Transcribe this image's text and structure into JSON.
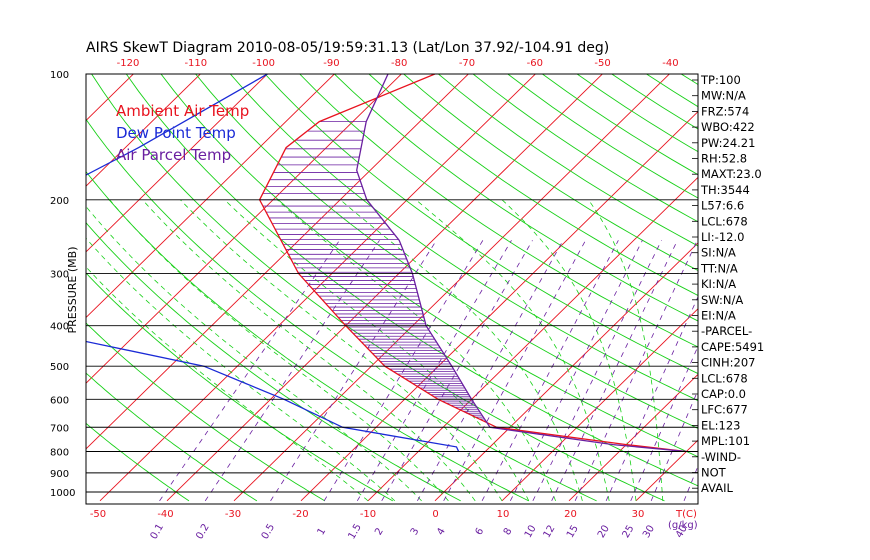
{
  "chart_data": {
    "type": "line",
    "title": "AIRS SkewT Diagram 2010-08-05/19:59:31.13 (Lat/Lon 37.92/-104.91 deg)",
    "ylabel": "PRESSURE (MB)",
    "xlabel_bottom_unit": "T(C)",
    "xlabel_bottom_mixing_unit": "(g/kg)",
    "pressure_ticks": [
      "100",
      "200",
      "300",
      "400",
      "500",
      "600",
      "700",
      "800",
      "900",
      "1000"
    ],
    "pressure_tick_values": [
      100,
      200,
      300,
      400,
      500,
      600,
      700,
      800,
      900,
      1000
    ],
    "top_temp_ticks": [
      "-120",
      "-110",
      "-100",
      "-90",
      "-80",
      "-70",
      "-60",
      "-50",
      "-40"
    ],
    "top_temp_values": [
      -120,
      -110,
      -100,
      -90,
      -80,
      -70,
      -60,
      -50,
      -40
    ],
    "bottom_temp_ticks": [
      "-50",
      "-40",
      "-30",
      "-20",
      "-10",
      "0",
      "10",
      "20",
      "30"
    ],
    "bottom_temp_values": [
      -50,
      -40,
      -30,
      -20,
      -10,
      0,
      10,
      20,
      30
    ],
    "mixing_ratio_ticks": [
      "0.1",
      "0.2",
      "0.5",
      "1",
      "1.5",
      "2",
      "3",
      "4",
      "6",
      "8",
      "10",
      "12",
      "15",
      "20",
      "25",
      "30",
      "40"
    ],
    "mixing_ratio_values": [
      0.1,
      0.2,
      0.5,
      1,
      1.5,
      2,
      3,
      4,
      6,
      8,
      10,
      12,
      15,
      20,
      25,
      30,
      40
    ],
    "legend": [
      {
        "name": "Ambient Air Temp",
        "color": "#e8131f"
      },
      {
        "name": "Dew Point Temp",
        "color": "#1a2ad6"
      },
      {
        "name": "Air Parcel Temp",
        "color": "#6a1fa0"
      }
    ],
    "legend_position": "top-left",
    "series": [
      {
        "name": "Ambient Air Temp",
        "points": [
          [
            -65,
            100
          ],
          [
            -75,
            130
          ],
          [
            -76,
            150
          ],
          [
            -72,
            200
          ],
          [
            -55,
            300
          ],
          [
            -40,
            400
          ],
          [
            -28,
            500
          ],
          [
            -15,
            600
          ],
          [
            -2,
            700
          ],
          [
            20,
            770
          ],
          [
            30,
            800
          ]
        ]
      },
      {
        "name": "Dew Point Temp",
        "points": [
          [
            -90,
            100
          ],
          [
            -98,
            150
          ],
          [
            -105,
            200
          ],
          [
            -110,
            250
          ],
          [
            -108,
            300
          ],
          [
            -90,
            400
          ],
          [
            -55,
            500
          ],
          [
            -38,
            600
          ],
          [
            -25,
            700
          ],
          [
            -5,
            780
          ],
          [
            -4,
            800
          ]
        ]
      },
      {
        "name": "Air Parcel Temp",
        "points": [
          [
            -72,
            100
          ],
          [
            -68,
            130
          ],
          [
            -62,
            170
          ],
          [
            -56,
            200
          ],
          [
            -45,
            250
          ],
          [
            -38,
            300
          ],
          [
            -28,
            400
          ],
          [
            -18,
            500
          ],
          [
            -10,
            600
          ],
          [
            -3,
            700
          ],
          [
            18,
            770
          ],
          [
            30,
            800
          ]
        ]
      }
    ],
    "colors": {
      "temp_isotherm": "#e8131f",
      "dry_adiabat": "#18d018",
      "moist_adiabat": "#18d018",
      "mixing_ratio": "#6a1fa0",
      "axis": "#000000"
    },
    "indices": [
      "TP:100",
      "MW:N/A",
      "FRZ:574",
      "WBO:422",
      "PW:24.21",
      "RH:52.8",
      "MAXT:23.0",
      "TH:3544",
      "L57:6.6",
      "LCL:678",
      "LI:-12.0",
      "SI:N/A",
      "TT:N/A",
      "KI:N/A",
      "SW:N/A",
      "EI:N/A",
      "-PARCEL-",
      "CAPE:5491",
      "CINH:207",
      "LCL:678",
      "CAP:0.0",
      "LFC:677",
      "EL:123",
      "MPL:101",
      "-WIND-",
      "NOT",
      "AVAIL"
    ]
  }
}
